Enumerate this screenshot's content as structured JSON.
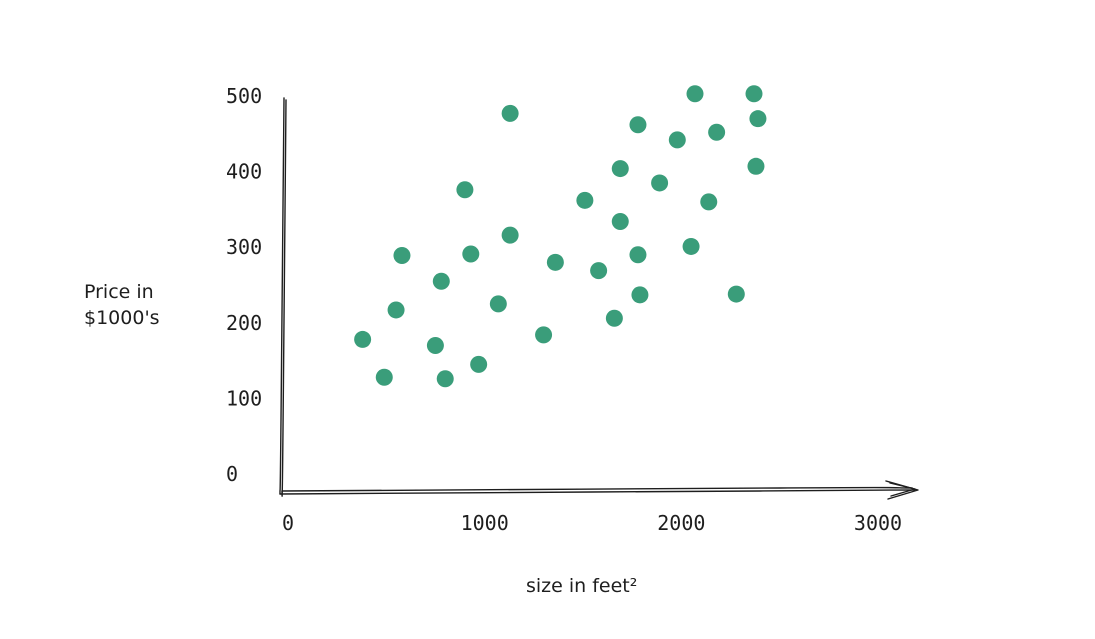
{
  "chart_data": {
    "type": "scatter",
    "xlabel": "size in feet²",
    "ylabel_line1": "Price in",
    "ylabel_line2": "$1000's",
    "xlim": [
      0,
      3000
    ],
    "ylim": [
      0,
      500
    ],
    "x_ticks": [
      "0",
      "1000",
      "2000",
      "3000"
    ],
    "y_ticks": [
      "0",
      "100",
      "200",
      "300",
      "400",
      "500"
    ],
    "point_color": "#3a9d7a",
    "points": [
      {
        "x": 410,
        "y": 178
      },
      {
        "x": 520,
        "y": 128
      },
      {
        "x": 580,
        "y": 217
      },
      {
        "x": 610,
        "y": 289
      },
      {
        "x": 780,
        "y": 170
      },
      {
        "x": 810,
        "y": 255
      },
      {
        "x": 830,
        "y": 126
      },
      {
        "x": 930,
        "y": 376
      },
      {
        "x": 960,
        "y": 291
      },
      {
        "x": 1000,
        "y": 145
      },
      {
        "x": 1100,
        "y": 225
      },
      {
        "x": 1160,
        "y": 316
      },
      {
        "x": 1160,
        "y": 477
      },
      {
        "x": 1330,
        "y": 184
      },
      {
        "x": 1390,
        "y": 280
      },
      {
        "x": 1540,
        "y": 362
      },
      {
        "x": 1610,
        "y": 269
      },
      {
        "x": 1690,
        "y": 206
      },
      {
        "x": 1720,
        "y": 334
      },
      {
        "x": 1720,
        "y": 404
      },
      {
        "x": 1810,
        "y": 290
      },
      {
        "x": 1820,
        "y": 237
      },
      {
        "x": 1810,
        "y": 462
      },
      {
        "x": 1920,
        "y": 385
      },
      {
        "x": 2010,
        "y": 442
      },
      {
        "x": 2080,
        "y": 301
      },
      {
        "x": 2100,
        "y": 503
      },
      {
        "x": 2170,
        "y": 360
      },
      {
        "x": 2210,
        "y": 452
      },
      {
        "x": 2310,
        "y": 238
      },
      {
        "x": 2400,
        "y": 503
      },
      {
        "x": 2410,
        "y": 407
      },
      {
        "x": 2420,
        "y": 470
      }
    ]
  }
}
